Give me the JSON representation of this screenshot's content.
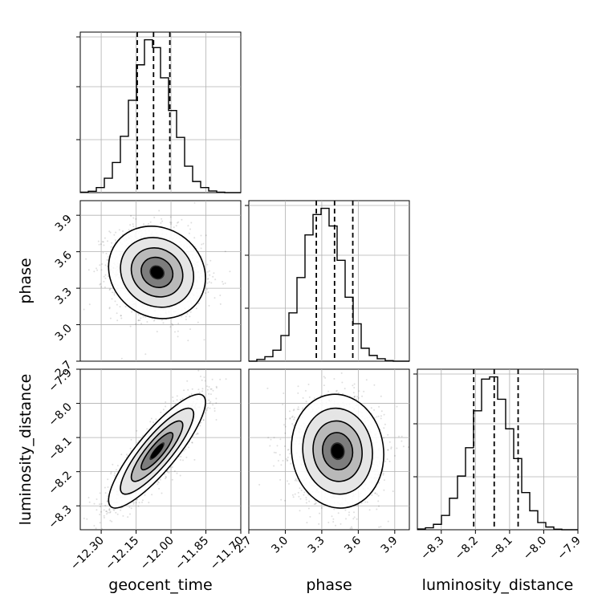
{
  "chart_data": {
    "type": "corner",
    "grid": true,
    "parameters": [
      "geocent_time",
      "phase",
      "luminosity_distance"
    ],
    "axis_labels": {
      "geocent_time": "geocent_time",
      "phase": "phase",
      "luminosity_distance": "luminosity_distance"
    },
    "ranges": {
      "geocent_time": [
        -12.39,
        -11.7
      ],
      "phase": [
        2.7,
        4.02
      ],
      "luminosity_distance": [
        -8.37,
        -7.9
      ]
    },
    "ticks": {
      "geocent_time": [
        -12.3,
        -12.15,
        -12.0,
        -11.85,
        -11.7
      ],
      "phase": [
        2.7,
        3.0,
        3.3,
        3.6,
        3.9
      ],
      "luminosity_distance": [
        -8.3,
        -8.2,
        -8.1,
        -8.0,
        -7.9
      ]
    },
    "tick_labels": {
      "geocent_time": [
        "−12.30",
        "−12.15",
        "−12.00",
        "−11.85",
        "−11.70"
      ],
      "phase": [
        "2.7",
        "3.0",
        "3.3",
        "3.6",
        "3.9"
      ],
      "luminosity_distance": [
        "−8.3",
        "−8.2",
        "−8.1",
        "−8.0",
        "−7.9"
      ]
    },
    "histograms": {
      "geocent_time": {
        "bin_edges": [
          -12.39,
          -12.3555,
          -12.321,
          -12.2865,
          -12.252,
          -12.2175,
          -12.183,
          -12.1485,
          -12.114,
          -12.0795,
          -12.045,
          -12.0105,
          -11.976,
          -11.9415,
          -11.907,
          -11.8725,
          -11.838,
          -11.8035,
          -11.769,
          -11.7345,
          -11.7
        ],
        "counts": [
          2,
          6,
          22,
          62,
          130,
          243,
          398,
          551,
          659,
          625,
          495,
          354,
          238,
          114,
          48,
          22,
          7,
          2,
          0,
          0
        ],
        "quantiles": [
          -12.145,
          -12.075,
          -12.005
        ]
      },
      "phase": {
        "bin_edges": [
          2.7,
          2.766,
          2.832,
          2.898,
          2.964,
          3.03,
          3.096,
          3.162,
          3.228,
          3.294,
          3.36,
          3.426,
          3.492,
          3.558,
          3.624,
          3.69,
          3.756,
          3.822,
          3.888,
          3.954,
          4.02
        ],
        "counts": [
          0,
          7,
          18,
          44,
          103,
          194,
          336,
          507,
          589,
          614,
          543,
          405,
          257,
          150,
          52,
          23,
          10,
          2,
          0,
          0
        ],
        "quantiles": [
          3.255,
          3.405,
          3.555
        ]
      },
      "luminosity_distance": {
        "bin_edges": [
          -8.37,
          -8.3465,
          -8.323,
          -8.2995,
          -8.276,
          -8.2525,
          -8.229,
          -8.2055,
          -8.182,
          -8.1585,
          -8.135,
          -8.1115,
          -8.088,
          -8.0645,
          -8.041,
          -8.0175,
          -7.994,
          -7.9705,
          -7.947,
          -7.9235,
          -7.9
        ],
        "counts": [
          3,
          8,
          22,
          58,
          128,
          218,
          333,
          483,
          612,
          621,
          530,
          410,
          289,
          151,
          77,
          29,
          11,
          2,
          0,
          0
        ],
        "quantiles": [
          -8.205,
          -8.145,
          -8.075
        ]
      }
    },
    "pairs": [
      {
        "x": "geocent_time",
        "y": "phase",
        "mean": [
          -12.06,
          3.43
        ],
        "sd": [
          0.085,
          0.155
        ],
        "rho": -0.12
      },
      {
        "x": "geocent_time",
        "y": "luminosity_distance",
        "mean": [
          -12.06,
          -8.14
        ],
        "sd": [
          0.085,
          0.068
        ],
        "rho": 0.86
      },
      {
        "x": "phase",
        "y": "luminosity_distance",
        "mean": [
          3.43,
          -8.14
        ],
        "sd": [
          0.155,
          0.068
        ],
        "rho": -0.06
      }
    ]
  }
}
